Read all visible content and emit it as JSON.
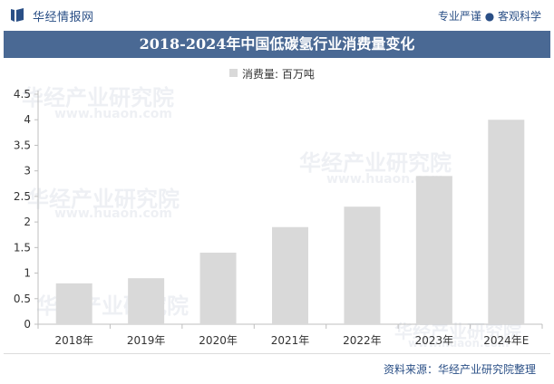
{
  "header": {
    "site_name": "华经情报网",
    "slogan": "专业严谨 ● 客观科学"
  },
  "watermark": {
    "main": "华经产业研究院",
    "sub": "www.huaon.com"
  },
  "chart_data": {
    "type": "bar",
    "title": "2018-2024年中国低碳氢行业消费量变化",
    "categories": [
      "2018年",
      "2019年",
      "2020年",
      "2021年",
      "2022年",
      "2023年",
      "2024年E"
    ],
    "series": [
      {
        "name": "消费量: 百万吨",
        "values": [
          0.8,
          0.9,
          1.4,
          1.9,
          2.3,
          2.9,
          4.0
        ]
      }
    ],
    "ylim": [
      0,
      4.5
    ],
    "yticks": [
      "0",
      "0.5",
      "1",
      "1.5",
      "2",
      "2.5",
      "3",
      "3.5",
      "4",
      "4.5"
    ],
    "bar_color": "#d9d9d9",
    "grid": false,
    "legend_position": "top"
  },
  "footer": {
    "source": "资料来源：华经产业研究院整理"
  },
  "colors": {
    "accent": "#4a6994",
    "brand_text": "#2a4f86"
  }
}
